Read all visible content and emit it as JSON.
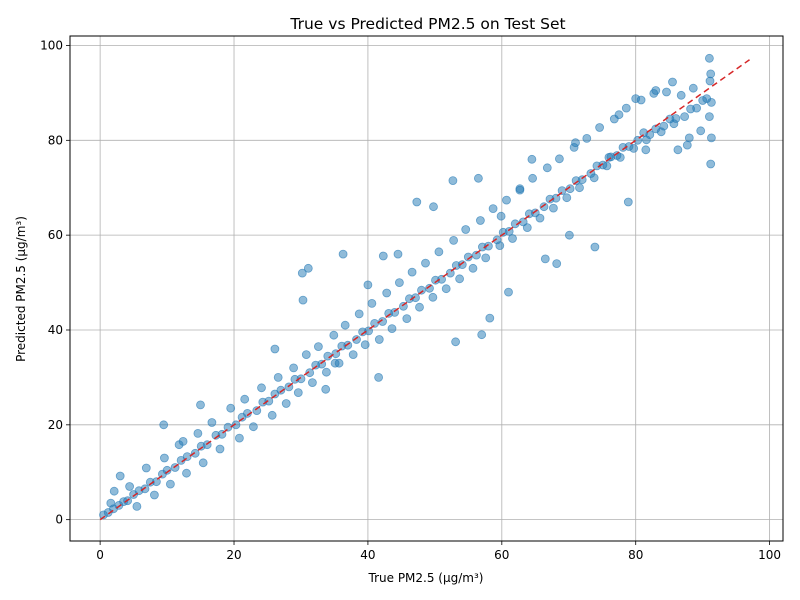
{
  "chart_data": {
    "type": "scatter",
    "title": "True vs Predicted PM2.5 on Test Set",
    "xlabel": "True PM2.5 (µg/m³)",
    "ylabel": "Predicted PM2.5 (µg/m³)",
    "xlim": [
      -4.5,
      102
    ],
    "ylim": [
      -4.5,
      102
    ],
    "xticks": [
      0,
      20,
      40,
      60,
      80,
      100
    ],
    "yticks": [
      0,
      20,
      40,
      60,
      80,
      100
    ],
    "grid": true,
    "point_color": "#1f77b4",
    "point_alpha": 0.5,
    "reference_line": {
      "style": "dashed",
      "color": "#d62728",
      "x": [
        0,
        97
      ],
      "y": [
        0,
        97
      ]
    },
    "series": [
      {
        "x": [
          0.5,
          1.2,
          2.0,
          2.8,
          3.5,
          4.1,
          5.0,
          5.8,
          6.7,
          7.5,
          8.4,
          9.3,
          10.0,
          11.2,
          12.1,
          13.0,
          14.2,
          15.1,
          16.0,
          17.3,
          18.2,
          19.1,
          20.3,
          21.2,
          22.0,
          23.4,
          24.3,
          25.2,
          26.1,
          27.0,
          28.2,
          29.1,
          30.0,
          31.3,
          32.2,
          33.1,
          34.0,
          35.2,
          36.1,
          37.0,
          38.3,
          39.2,
          40.1,
          41.0,
          42.2,
          43.1,
          44.0,
          45.3,
          46.2,
          47.1,
          48.0,
          49.2,
          50.1,
          51.0,
          52.3,
          53.2,
          54.1,
          55.0,
          56.2,
          57.1,
          58.0,
          59.3,
          60.2,
          61.1,
          62.0,
          63.2,
          64.1,
          65.0,
          66.3,
          67.2,
          68.1,
          69.0,
          70.2,
          71.1,
          72.0,
          73.3,
          74.2,
          75.1,
          76.0,
          77.2,
          78.1,
          79.0,
          80.3,
          81.2,
          82.1,
          83.0,
          84.2,
          85.1,
          86.0,
          87.3,
          88.2,
          89.1,
          90.0,
          91.0,
          91.3,
          91.2,
          91.1,
          91.3,
          91.0,
          91.2,
          2.1,
          3.0,
          1.6,
          4.4,
          5.5,
          6.9,
          8.1,
          9.6,
          10.5,
          11.8,
          12.9,
          14.6,
          15.4,
          16.7,
          17.9,
          19.5,
          20.8,
          21.6,
          22.9,
          24.1,
          25.7,
          26.6,
          27.8,
          28.9,
          29.6,
          30.8,
          31.7,
          32.6,
          33.8,
          34.9,
          35.7,
          36.6,
          37.8,
          38.7,
          39.6,
          40.6,
          41.7,
          42.8,
          43.6,
          44.7,
          45.8,
          46.6,
          47.7,
          48.6,
          49.7,
          50.6,
          51.7,
          52.8,
          53.7,
          54.6,
          55.7,
          56.8,
          57.6,
          58.7,
          59.7,
          60.7,
          61.6,
          62.7,
          63.8,
          64.6,
          65.7,
          66.8,
          67.7,
          68.6,
          69.7,
          70.8,
          71.6,
          72.7,
          73.8,
          74.6,
          75.7,
          76.8,
          77.7,
          78.6,
          79.7,
          80.8,
          81.6,
          82.7,
          83.8,
          84.6,
          85.7,
          86.8,
          87.7,
          88.6,
          89.7,
          90.6,
          9.5,
          30.2,
          31.1,
          30.3,
          52.7,
          49.8,
          47.3,
          36.3,
          56.5,
          81.5,
          80.0,
          61.0,
          88.0,
          64.5,
          83.0,
          71.0,
          58.2,
          77.5,
          35.1,
          42.3,
          57.0,
          44.5,
          76.3,
          40.0,
          62.7,
          85.5,
          15.0,
          26.1,
          53.1,
          68.2,
          59.9,
          70.1,
          78.9,
          86.3,
          12.4,
          33.7,
          66.5,
          73.9,
          41.6
        ],
        "y": [
          1.0,
          1.5,
          2.3,
          3.0,
          3.8,
          4.0,
          5.3,
          6.1,
          6.5,
          7.9,
          8.0,
          9.6,
          10.4,
          11.0,
          12.5,
          13.3,
          14.0,
          15.5,
          15.8,
          17.8,
          18.0,
          19.5,
          20.0,
          21.6,
          22.4,
          23.0,
          24.8,
          25.0,
          26.5,
          27.3,
          28.0,
          29.6,
          29.7,
          31.0,
          32.6,
          32.8,
          34.5,
          35.0,
          36.6,
          36.8,
          38.0,
          39.6,
          39.8,
          41.4,
          41.8,
          43.5,
          43.7,
          45.0,
          46.6,
          46.8,
          48.4,
          48.8,
          50.5,
          50.7,
          52.0,
          53.6,
          53.8,
          55.4,
          55.8,
          57.5,
          57.7,
          59.0,
          60.6,
          60.8,
          62.4,
          62.8,
          64.5,
          64.7,
          66.0,
          67.6,
          67.8,
          69.4,
          69.8,
          71.5,
          71.7,
          73.0,
          74.6,
          74.8,
          76.4,
          76.8,
          78.5,
          78.7,
          80.0,
          81.6,
          81.2,
          82.4,
          83.0,
          84.5,
          84.6,
          85.0,
          86.6,
          86.8,
          88.4,
          97.3,
          88.0,
          75.0,
          92.5,
          80.5,
          85.0,
          94.0,
          6.0,
          9.2,
          3.5,
          7.0,
          2.8,
          10.9,
          5.2,
          13.0,
          7.5,
          15.8,
          9.8,
          18.2,
          12.0,
          20.5,
          14.9,
          23.5,
          17.2,
          25.4,
          19.6,
          27.8,
          22.0,
          30.0,
          24.5,
          32.0,
          26.8,
          34.8,
          28.9,
          36.5,
          31.1,
          38.9,
          33.0,
          41.0,
          34.8,
          43.4,
          36.9,
          45.6,
          38.0,
          47.8,
          40.3,
          50.0,
          42.4,
          52.2,
          44.8,
          54.1,
          46.9,
          56.5,
          48.7,
          58.9,
          50.8,
          61.2,
          53.0,
          63.1,
          55.2,
          65.6,
          57.8,
          67.4,
          59.3,
          69.8,
          61.6,
          72.0,
          63.6,
          74.2,
          65.7,
          76.1,
          67.9,
          78.5,
          70.0,
          80.4,
          72.1,
          82.7,
          74.6,
          84.5,
          76.4,
          86.8,
          78.3,
          88.5,
          80.1,
          89.9,
          81.8,
          90.2,
          83.5,
          89.5,
          79.0,
          91.0,
          82.0,
          88.8,
          20.0,
          52.0,
          53.0,
          46.3,
          71.5,
          66.0,
          67.0,
          56.0,
          72.0,
          78.0,
          88.8,
          48.0,
          80.5,
          76.0,
          90.5,
          79.5,
          42.5,
          85.4,
          33.0,
          55.6,
          39.0,
          56.0,
          76.5,
          49.5,
          69.5,
          92.3,
          24.2,
          36.0,
          37.5,
          54.0,
          64.0,
          60.0,
          67.0,
          78.0,
          16.5,
          27.5,
          55.0,
          57.5,
          30.0
        ]
      }
    ]
  }
}
